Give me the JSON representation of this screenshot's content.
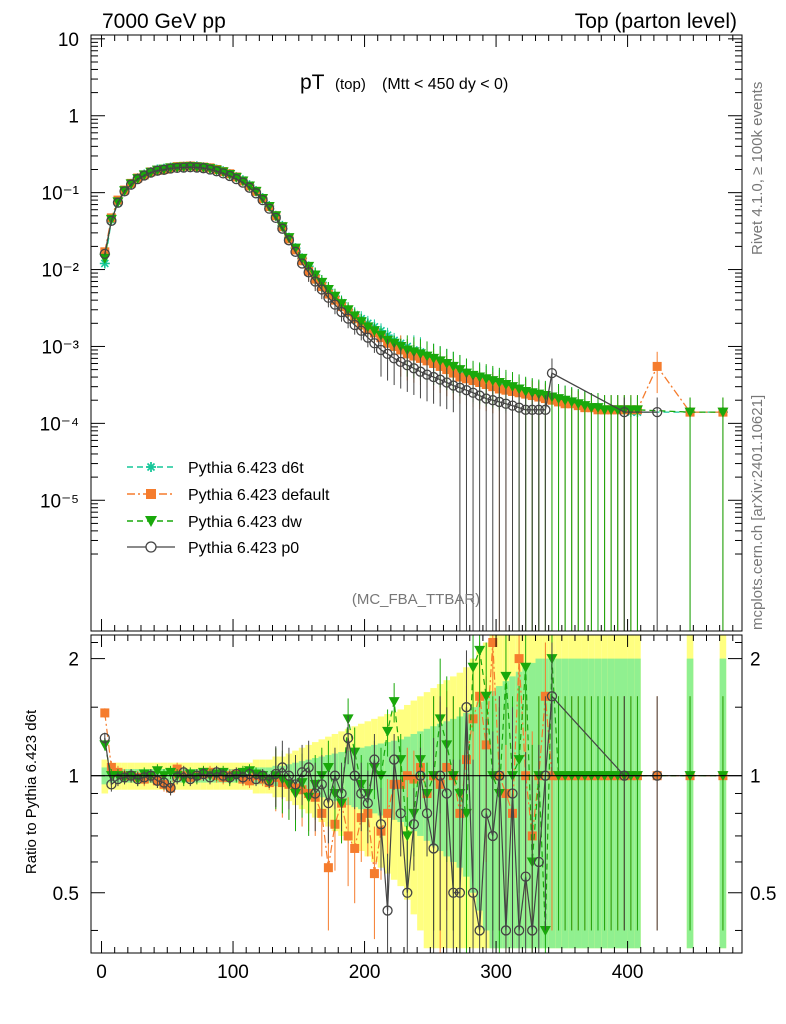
{
  "chart_data": {
    "type": "scatter",
    "header_left": "7000 GeV pp",
    "header_right": "Top (parton level)",
    "title_main": "pT",
    "title_sub1": "(top)",
    "title_sub2": "(Mtt < 450 dy < 0)",
    "side_label_top": "Rivet 4.1.0, ≥ 100k events",
    "side_label_bottom": "mcplots.cern.ch [arXiv:2401.10621]",
    "analysis_tag": "(MC_FBA_TTBAR)",
    "ratio_ylabel": "Ratio to Pythia 6.423 d6t",
    "main_yticks": [
      "10",
      "1",
      "10⁻¹",
      "10⁻²",
      "10⁻³",
      "10⁻⁴",
      "10⁻⁵"
    ],
    "main_ylim_log10": [
      -6.7,
      1.05
    ],
    "ratio_yticks": [
      "0.5",
      "1",
      "2"
    ],
    "ratio_ylim": [
      0.35,
      2.3
    ],
    "xticks": [
      "0",
      "100",
      "200",
      "300",
      "400"
    ],
    "xlim": [
      -8,
      487
    ],
    "legend": [
      {
        "name": "Pythia 6.423 d6t",
        "color": "#17c799",
        "marker": "star",
        "dash": "dashed"
      },
      {
        "name": "Pythia 6.423 default",
        "color": "#f57c2d",
        "marker": "square",
        "dash": "dashdot"
      },
      {
        "name": "Pythia 6.423 dw",
        "color": "#19a80b",
        "marker": "triangle-down",
        "dash": "dashed"
      },
      {
        "name": "Pythia 6.423 p0",
        "color": "#444444",
        "marker": "circle",
        "dash": "solid"
      }
    ],
    "series": [
      {
        "name": "Pythia 6.423 d6t",
        "x": [
          2.5,
          7.5,
          12.5,
          17.5,
          22.5,
          27.5,
          32.5,
          37.5,
          42.5,
          47.5,
          52.5,
          57.5,
          62.5,
          67.5,
          72.5,
          77.5,
          82.5,
          87.5,
          92.5,
          97.5,
          102.5,
          107.5,
          112.5,
          117.5,
          122.5,
          127.5,
          132.5,
          137.5,
          142.5,
          147.5,
          152.5,
          157.5,
          162.5,
          167.5,
          172.5,
          177.5,
          182.5,
          187.5,
          192.5,
          197.5,
          202.5,
          207.5,
          212.5,
          217.5,
          222.5,
          227.5,
          232.5,
          237.5,
          242.5,
          247.5,
          252.5,
          257.5,
          262.5,
          267.5,
          272.5,
          277.5,
          282.5,
          287.5,
          292.5,
          297.5,
          302.5,
          307.5,
          312.5,
          317.5,
          322.5,
          327.5,
          332.5,
          337.5,
          342.5,
          347.5,
          352.5,
          357.5,
          362.5,
          367.5,
          372.5,
          377.5,
          382.5,
          387.5,
          392.5,
          397.5,
          402.5,
          407.5,
          447.5,
          472.5
        ],
        "y": [
          0.012,
          0.044,
          0.075,
          0.105,
          0.13,
          0.155,
          0.172,
          0.185,
          0.2,
          0.205,
          0.212,
          0.215,
          0.218,
          0.222,
          0.22,
          0.215,
          0.208,
          0.2,
          0.19,
          0.175,
          0.16,
          0.145,
          0.125,
          0.105,
          0.085,
          0.067,
          0.05,
          0.037,
          0.026,
          0.019,
          0.014,
          0.011,
          0.0085,
          0.0068,
          0.0055,
          0.0045,
          0.0037,
          0.003,
          0.0026,
          0.0023,
          0.002,
          0.0018,
          0.0016,
          0.0014,
          0.0012,
          0.0011,
          0.001,
          0.0009,
          0.00085,
          0.00075,
          0.0007,
          0.00065,
          0.0006,
          0.00055,
          0.0005,
          0.00045,
          0.0004,
          0.00038,
          0.00036,
          0.00034,
          0.00032,
          0.0003,
          0.00028,
          0.00026,
          0.00025,
          0.00024,
          0.00023,
          0.00022,
          0.00021,
          0.0002,
          0.0002,
          0.00019,
          0.00018,
          0.00017,
          0.00016,
          0.00016,
          0.00015,
          0.00015,
          0.00015,
          0.00015,
          0.00014,
          0.00014,
          0.00014,
          0.00014
        ],
        "ratio_band_stat": [
          0.05,
          0.04,
          0.04,
          0.04,
          0.04,
          0.04,
          0.04,
          0.04,
          0.04,
          0.04,
          0.04,
          0.04,
          0.04,
          0.04,
          0.04,
          0.04,
          0.04,
          0.04,
          0.04,
          0.04,
          0.04,
          0.04,
          0.04,
          0.05,
          0.05,
          0.05,
          0.06,
          0.06,
          0.07,
          0.08,
          0.09,
          0.1,
          0.11,
          0.12,
          0.13,
          0.14,
          0.15,
          0.16,
          0.17,
          0.18,
          0.19,
          0.2,
          0.21,
          0.22,
          0.23,
          0.24,
          0.26,
          0.28,
          0.3,
          0.32,
          0.34,
          0.36,
          0.38,
          0.4,
          0.42,
          0.45,
          0.5,
          0.55,
          0.6,
          0.65,
          0.7,
          0.75,
          0.8,
          0.85,
          0.9,
          0.95,
          1.0,
          1.0,
          1.0,
          1.0,
          1.0,
          1.0,
          1.0,
          1.0,
          1.0,
          1.0,
          1.0,
          1.0,
          1.0,
          1.0,
          1.0,
          1.0,
          1.0,
          1.0
        ]
      },
      {
        "name": "Pythia 6.423 default",
        "x": [
          2.5,
          7.5,
          12.5,
          17.5,
          22.5,
          27.5,
          32.5,
          37.5,
          42.5,
          47.5,
          52.5,
          57.5,
          62.5,
          67.5,
          72.5,
          77.5,
          82.5,
          87.5,
          92.5,
          97.5,
          102.5,
          107.5,
          112.5,
          117.5,
          122.5,
          127.5,
          132.5,
          137.5,
          142.5,
          147.5,
          152.5,
          157.5,
          162.5,
          167.5,
          172.5,
          177.5,
          182.5,
          187.5,
          192.5,
          197.5,
          202.5,
          207.5,
          212.5,
          217.5,
          222.5,
          227.5,
          232.5,
          237.5,
          242.5,
          247.5,
          252.5,
          257.5,
          262.5,
          267.5,
          272.5,
          277.5,
          282.5,
          287.5,
          292.5,
          297.5,
          302.5,
          307.5,
          312.5,
          317.5,
          322.5,
          327.5,
          332.5,
          337.5,
          342.5,
          347.5,
          352.5,
          357.5,
          362.5,
          367.5,
          372.5,
          377.5,
          382.5,
          387.5,
          392.5,
          397.5,
          402.5,
          407.5,
          422.5,
          447.5,
          472.5
        ],
        "y": [
          0.017,
          0.047,
          0.08,
          0.108,
          0.132,
          0.155,
          0.17,
          0.186,
          0.195,
          0.2,
          0.21,
          0.218,
          0.22,
          0.222,
          0.218,
          0.215,
          0.21,
          0.2,
          0.188,
          0.176,
          0.16,
          0.142,
          0.122,
          0.104,
          0.084,
          0.066,
          0.05,
          0.036,
          0.025,
          0.018,
          0.013,
          0.0095,
          0.0075,
          0.006,
          0.0048,
          0.004,
          0.0033,
          0.0028,
          0.0023,
          0.0019,
          0.0017,
          0.0015,
          0.0013,
          0.0011,
          0.001,
          0.0009,
          0.0008,
          0.00075,
          0.0007,
          0.00065,
          0.0006,
          0.00055,
          0.0005,
          0.00045,
          0.0004,
          0.00038,
          0.00036,
          0.00034,
          0.00032,
          0.0003,
          0.00028,
          0.00027,
          0.00026,
          0.00025,
          0.00024,
          0.00023,
          0.00022,
          0.00021,
          0.0002,
          0.00019,
          0.00018,
          0.00018,
          0.00017,
          0.00016,
          0.00016,
          0.00015,
          0.00015,
          0.00015,
          0.00015,
          0.00015,
          0.00015,
          0.00015,
          0.00055,
          0.00014,
          0.00014
        ],
        "ratio": [
          1.45,
          1.05,
          1.02,
          1.0,
          1.0,
          0.99,
          0.98,
          1.0,
          0.97,
          0.95,
          0.93,
          1.04,
          1.0,
          0.99,
          1.0,
          1.01,
          1.02,
          1.0,
          0.99,
          1.0,
          1.01,
          0.98,
          0.97,
          1.0,
          0.98,
          0.96,
          0.99,
          0.96,
          0.95,
          0.93,
          0.92,
          0.9,
          0.88,
          0.8,
          0.58,
          0.75,
          0.85,
          0.7,
          0.65,
          0.78,
          0.8,
          0.56,
          0.72,
          0.8,
          0.95,
          0.95,
          1.0,
          0.98,
          1.05,
          0.9,
          1.0,
          0.95,
          1.05,
          1.0,
          0.8,
          1.1,
          1.4,
          1.6,
          1.2,
          2.2,
          1.0,
          0.9,
          0.8,
          2.0,
          1.0,
          0.7,
          1.0,
          1.6,
          1.0,
          1.0,
          1.0,
          1.0,
          1.0,
          1.0,
          1.0,
          1.0,
          1.0,
          1.0,
          1.0,
          1.0,
          1.0,
          1.0,
          1.0,
          1.0,
          1.0
        ]
      },
      {
        "name": "Pythia 6.423 dw",
        "x": [
          2.5,
          7.5,
          12.5,
          17.5,
          22.5,
          27.5,
          32.5,
          37.5,
          42.5,
          47.5,
          52.5,
          57.5,
          62.5,
          67.5,
          72.5,
          77.5,
          82.5,
          87.5,
          92.5,
          97.5,
          102.5,
          107.5,
          112.5,
          117.5,
          122.5,
          127.5,
          132.5,
          137.5,
          142.5,
          147.5,
          152.5,
          157.5,
          162.5,
          167.5,
          172.5,
          177.5,
          182.5,
          187.5,
          192.5,
          197.5,
          202.5,
          207.5,
          212.5,
          217.5,
          222.5,
          227.5,
          232.5,
          237.5,
          242.5,
          247.5,
          252.5,
          257.5,
          262.5,
          267.5,
          272.5,
          277.5,
          282.5,
          287.5,
          292.5,
          297.5,
          302.5,
          307.5,
          312.5,
          317.5,
          322.5,
          327.5,
          332.5,
          337.5,
          342.5,
          347.5,
          352.5,
          357.5,
          362.5,
          367.5,
          372.5,
          377.5,
          382.5,
          387.5,
          392.5,
          397.5,
          402.5,
          407.5,
          447.5,
          472.5
        ],
        "y": [
          0.014,
          0.045,
          0.076,
          0.106,
          0.13,
          0.152,
          0.17,
          0.184,
          0.196,
          0.202,
          0.21,
          0.213,
          0.216,
          0.218,
          0.216,
          0.212,
          0.205,
          0.196,
          0.186,
          0.172,
          0.158,
          0.142,
          0.122,
          0.104,
          0.084,
          0.066,
          0.05,
          0.036,
          0.026,
          0.019,
          0.014,
          0.011,
          0.0085,
          0.0068,
          0.0055,
          0.0045,
          0.0036,
          0.003,
          0.0025,
          0.0021,
          0.0018,
          0.0016,
          0.0014,
          0.0012,
          0.0011,
          0.001,
          0.0009,
          0.00085,
          0.0008,
          0.00075,
          0.0007,
          0.00065,
          0.0006,
          0.00055,
          0.0005,
          0.00045,
          0.00042,
          0.0004,
          0.00038,
          0.00036,
          0.00034,
          0.00032,
          0.0003,
          0.00028,
          0.00026,
          0.00025,
          0.00024,
          0.00023,
          0.00022,
          0.00021,
          0.0002,
          0.00019,
          0.00018,
          0.00017,
          0.00016,
          0.00016,
          0.00015,
          0.00015,
          0.00015,
          0.00015,
          0.00015,
          0.00015,
          0.00014,
          0.00014
        ],
        "ratio": [
          1.2,
          1.0,
          1.0,
          0.99,
          1.0,
          0.98,
          1.01,
          1.0,
          1.03,
          1.0,
          1.02,
          1.0,
          0.98,
          1.01,
          0.99,
          1.02,
          1.0,
          1.01,
          1.02,
          0.98,
          1.0,
          1.02,
          1.03,
          1.01,
          1.0,
          0.97,
          1.0,
          0.98,
          0.95,
          0.9,
          0.96,
          0.88,
          0.95,
          1.0,
          1.05,
          0.9,
          0.85,
          1.4,
          1.15,
          0.95,
          0.9,
          1.05,
          1.0,
          1.3,
          1.55,
          1.1,
          0.7,
          0.8,
          1.1,
          0.9,
          1.0,
          1.4,
          1.2,
          1.0,
          0.9,
          0.8,
          1.9,
          2.1,
          1.6,
          1.0,
          0.9,
          1.8,
          1.0,
          1.1,
          1.9,
          0.6,
          1.0,
          0.4,
          2.0,
          1.0,
          1.0,
          1.0,
          1.0,
          1.0,
          1.0,
          1.0,
          1.0,
          1.0,
          1.0,
          1.0,
          1.0,
          1.0,
          1.0,
          1.0
        ]
      },
      {
        "name": "Pythia 6.423 p0",
        "x": [
          2.5,
          7.5,
          12.5,
          17.5,
          22.5,
          27.5,
          32.5,
          37.5,
          42.5,
          47.5,
          52.5,
          57.5,
          62.5,
          67.5,
          72.5,
          77.5,
          82.5,
          87.5,
          92.5,
          97.5,
          102.5,
          107.5,
          112.5,
          117.5,
          122.5,
          127.5,
          132.5,
          137.5,
          142.5,
          147.5,
          152.5,
          157.5,
          162.5,
          167.5,
          172.5,
          177.5,
          182.5,
          187.5,
          192.5,
          197.5,
          202.5,
          207.5,
          212.5,
          217.5,
          222.5,
          227.5,
          232.5,
          237.5,
          242.5,
          247.5,
          252.5,
          257.5,
          262.5,
          267.5,
          272.5,
          277.5,
          282.5,
          287.5,
          292.5,
          297.5,
          302.5,
          307.5,
          312.5,
          317.5,
          322.5,
          327.5,
          332.5,
          337.5,
          342.5,
          397.5,
          422.5
        ],
        "y": [
          0.016,
          0.043,
          0.074,
          0.104,
          0.127,
          0.15,
          0.167,
          0.182,
          0.193,
          0.198,
          0.206,
          0.21,
          0.212,
          0.214,
          0.212,
          0.208,
          0.2,
          0.19,
          0.178,
          0.165,
          0.15,
          0.135,
          0.116,
          0.098,
          0.08,
          0.062,
          0.047,
          0.034,
          0.024,
          0.017,
          0.012,
          0.0092,
          0.007,
          0.0055,
          0.0043,
          0.0035,
          0.0028,
          0.0023,
          0.0019,
          0.0016,
          0.0013,
          0.0011,
          0.0009,
          0.0008,
          0.0007,
          0.00063,
          0.00057,
          0.00052,
          0.00047,
          0.00043,
          0.0004,
          0.00037,
          0.00034,
          0.00031,
          0.00029,
          0.00027,
          0.00025,
          0.00023,
          0.00021,
          0.0002,
          0.00019,
          0.00018,
          0.00017,
          0.00016,
          0.00015,
          0.00015,
          0.00015,
          0.00015,
          0.00045,
          0.00014,
          0.00014
        ],
        "ratio": [
          1.25,
          0.95,
          0.98,
          0.99,
          1.0,
          0.98,
          0.99,
          1.0,
          0.97,
          0.96,
          0.93,
          0.99,
          1.02,
          0.98,
          1.0,
          1.01,
          0.99,
          1.02,
          1.0,
          0.99,
          1.01,
          0.99,
          1.01,
          0.98,
          1.0,
          0.97,
          1.01,
          1.05,
          1.0,
          0.95,
          1.02,
          1.05,
          0.9,
          0.95,
          0.85,
          1.0,
          0.9,
          1.25,
          1.0,
          0.9,
          0.85,
          1.1,
          0.75,
          0.45,
          1.1,
          0.8,
          0.5,
          0.75,
          1.0,
          0.8,
          0.65,
          1.0,
          0.9,
          0.5,
          0.5,
          1.5,
          0.5,
          0.4,
          0.8,
          0.7,
          1.0,
          0.4,
          0.9,
          0.4,
          0.55,
          0.4,
          0.6,
          1.0,
          1.6,
          1.0,
          1.0
        ]
      }
    ]
  }
}
